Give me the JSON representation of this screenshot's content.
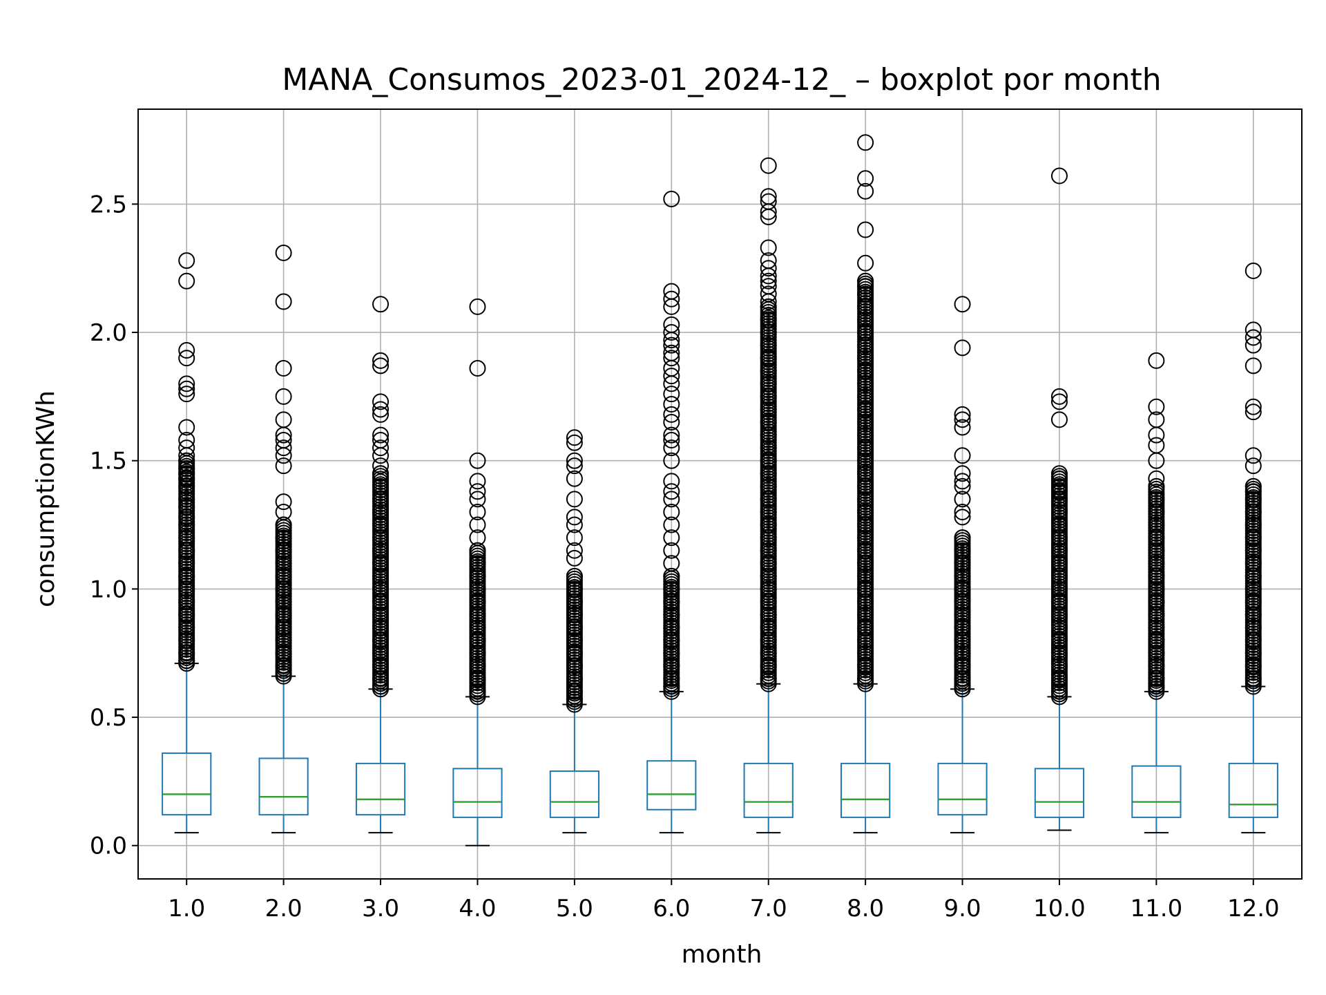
{
  "chart_data": {
    "type": "boxplot",
    "title": "MANA_Consumos_2023-01_2024-12_ – boxplot por month",
    "xlabel": "month",
    "ylabel": "consumptionKWh",
    "categories": [
      "1.0",
      "2.0",
      "3.0",
      "4.0",
      "5.0",
      "6.0",
      "7.0",
      "8.0",
      "9.0",
      "10.0",
      "11.0",
      "12.0"
    ],
    "ylim": [
      -0.13,
      2.87
    ],
    "yticks": [
      0.0,
      0.5,
      1.0,
      1.5,
      2.0,
      2.5
    ],
    "ytick_labels": [
      "0.0",
      "0.5",
      "1.0",
      "1.5",
      "2.0",
      "2.5"
    ],
    "grid": true,
    "colors": {
      "box": "#1f77b4",
      "whisker": "#1f77b4",
      "median": "#2ca02c",
      "cap": "#000000",
      "flier": "#000000",
      "grid": "#b0b0b0"
    },
    "boxes": [
      {
        "month": "1.0",
        "whislo": 0.05,
        "q1": 0.12,
        "med": 0.2,
        "q3": 0.36,
        "whishi": 0.71,
        "outlier_min": 0.71,
        "outlier_dense_to": 1.5,
        "fliers": [
          2.28,
          2.2,
          1.93,
          1.9,
          1.8,
          1.78,
          1.76,
          1.63,
          1.58,
          1.55,
          1.52,
          1.5,
          1.47,
          1.45,
          1.43,
          1.4,
          1.35,
          1.32,
          1.28,
          1.25,
          1.2,
          1.15,
          1.1,
          1.05,
          1.0,
          0.95,
          0.9,
          0.85,
          0.8,
          0.75,
          0.72
        ]
      },
      {
        "month": "2.0",
        "whislo": 0.05,
        "q1": 0.12,
        "med": 0.19,
        "q3": 0.34,
        "whishi": 0.66,
        "outlier_min": 0.66,
        "outlier_dense_to": 1.25,
        "fliers": [
          2.31,
          2.12,
          1.86,
          1.75,
          1.66,
          1.6,
          1.58,
          1.55,
          1.52,
          1.48,
          1.34,
          1.3,
          1.25,
          1.2,
          1.15,
          1.1,
          1.05,
          1.0,
          0.95,
          0.9,
          0.85,
          0.8,
          0.75,
          0.7,
          0.67
        ]
      },
      {
        "month": "3.0",
        "whislo": 0.05,
        "q1": 0.12,
        "med": 0.18,
        "q3": 0.32,
        "whishi": 0.61,
        "outlier_min": 0.61,
        "outlier_dense_to": 1.45,
        "fliers": [
          2.11,
          1.89,
          1.87,
          1.73,
          1.7,
          1.68,
          1.6,
          1.58,
          1.55,
          1.52,
          1.48,
          1.45,
          1.4,
          1.35,
          1.3,
          1.25,
          1.2,
          1.15,
          1.1,
          1.05,
          1.0,
          0.95,
          0.9,
          0.85,
          0.8,
          0.75,
          0.7,
          0.65,
          0.62
        ]
      },
      {
        "month": "4.0",
        "whislo": 0.0,
        "q1": 0.11,
        "med": 0.17,
        "q3": 0.3,
        "whishi": 0.58,
        "outlier_min": 0.58,
        "outlier_dense_to": 1.15,
        "fliers": [
          2.1,
          1.86,
          1.5,
          1.42,
          1.38,
          1.35,
          1.3,
          1.25,
          1.2,
          1.15,
          1.1,
          1.05,
          1.0,
          0.95,
          0.9,
          0.85,
          0.8,
          0.75,
          0.7,
          0.65,
          0.6
        ]
      },
      {
        "month": "5.0",
        "whislo": 0.05,
        "q1": 0.11,
        "med": 0.17,
        "q3": 0.29,
        "whishi": 0.55,
        "outlier_min": 0.55,
        "outlier_dense_to": 1.05,
        "fliers": [
          1.59,
          1.57,
          1.5,
          1.48,
          1.43,
          1.35,
          1.28,
          1.25,
          1.2,
          1.15,
          1.12,
          1.05,
          1.0,
          0.95,
          0.9,
          0.85,
          0.8,
          0.75,
          0.7,
          0.65,
          0.6,
          0.57
        ]
      },
      {
        "month": "6.0",
        "whislo": 0.05,
        "q1": 0.14,
        "med": 0.2,
        "q3": 0.33,
        "whishi": 0.6,
        "outlier_min": 0.6,
        "outlier_dense_to": 1.05,
        "fliers": [
          2.52,
          2.16,
          2.13,
          2.1,
          2.03,
          2.0,
          1.97,
          1.95,
          1.92,
          1.9,
          1.86,
          1.83,
          1.8,
          1.76,
          1.72,
          1.68,
          1.65,
          1.6,
          1.58,
          1.55,
          1.5,
          1.42,
          1.38,
          1.35,
          1.3,
          1.25,
          1.2,
          1.15,
          1.1,
          1.05,
          1.0,
          0.95,
          0.9,
          0.85,
          0.8,
          0.75,
          0.7,
          0.65,
          0.62
        ]
      },
      {
        "month": "7.0",
        "whislo": 0.05,
        "q1": 0.11,
        "med": 0.17,
        "q3": 0.32,
        "whishi": 0.63,
        "outlier_min": 0.63,
        "outlier_dense_to": 2.1,
        "fliers": [
          2.65,
          2.53,
          2.51,
          2.47,
          2.45,
          2.33,
          2.28,
          2.25,
          2.22,
          2.2,
          2.18,
          2.15,
          2.12,
          2.1,
          2.05,
          2.0,
          1.95,
          1.9,
          1.85,
          1.8,
          1.75,
          1.7,
          1.65,
          1.6,
          1.55,
          1.5,
          1.45,
          1.4,
          1.35,
          1.3,
          1.25,
          1.2,
          1.15,
          1.1,
          1.05,
          1.0,
          0.95,
          0.9,
          0.85,
          0.8,
          0.75,
          0.7,
          0.65
        ]
      },
      {
        "month": "8.0",
        "whislo": 0.05,
        "q1": 0.11,
        "med": 0.18,
        "q3": 0.32,
        "whishi": 0.63,
        "outlier_min": 0.63,
        "outlier_dense_to": 2.2,
        "fliers": [
          2.74,
          2.6,
          2.55,
          2.4,
          2.27,
          2.2,
          2.18,
          2.15,
          2.1,
          2.05,
          2.0,
          1.95,
          1.9,
          1.85,
          1.8,
          1.75,
          1.7,
          1.65,
          1.6,
          1.55,
          1.5,
          1.45,
          1.4,
          1.35,
          1.3,
          1.25,
          1.2,
          1.15,
          1.1,
          1.05,
          1.0,
          0.95,
          0.9,
          0.85,
          0.8,
          0.75,
          0.7,
          0.65
        ]
      },
      {
        "month": "9.0",
        "whislo": 0.05,
        "q1": 0.12,
        "med": 0.18,
        "q3": 0.32,
        "whishi": 0.61,
        "outlier_min": 0.61,
        "outlier_dense_to": 1.2,
        "fliers": [
          2.11,
          1.94,
          1.68,
          1.66,
          1.63,
          1.52,
          1.45,
          1.42,
          1.4,
          1.35,
          1.3,
          1.28,
          1.2,
          1.15,
          1.1,
          1.05,
          1.0,
          0.95,
          0.9,
          0.85,
          0.8,
          0.75,
          0.7,
          0.65,
          0.62
        ]
      },
      {
        "month": "10.0",
        "whislo": 0.06,
        "q1": 0.11,
        "med": 0.17,
        "q3": 0.3,
        "whishi": 0.58,
        "outlier_min": 0.58,
        "outlier_dense_to": 1.45,
        "fliers": [
          2.61,
          1.75,
          1.73,
          1.66,
          1.43,
          1.4,
          1.38,
          1.35,
          1.3,
          1.25,
          1.2,
          1.15,
          1.1,
          1.05,
          1.0,
          0.95,
          0.9,
          0.85,
          0.8,
          0.75,
          0.7,
          0.65,
          0.6
        ]
      },
      {
        "month": "11.0",
        "whislo": 0.05,
        "q1": 0.11,
        "med": 0.17,
        "q3": 0.31,
        "whishi": 0.6,
        "outlier_min": 0.6,
        "outlier_dense_to": 1.4,
        "fliers": [
          1.89,
          1.71,
          1.66,
          1.6,
          1.56,
          1.5,
          1.43,
          1.4,
          1.35,
          1.3,
          1.25,
          1.2,
          1.15,
          1.1,
          1.05,
          1.0,
          0.95,
          0.9,
          0.85,
          0.8,
          0.75,
          0.7,
          0.65,
          0.62
        ]
      },
      {
        "month": "12.0",
        "whislo": 0.05,
        "q1": 0.11,
        "med": 0.16,
        "q3": 0.32,
        "whishi": 0.62,
        "outlier_min": 0.62,
        "outlier_dense_to": 1.4,
        "fliers": [
          2.24,
          2.01,
          1.98,
          1.95,
          1.87,
          1.71,
          1.69,
          1.52,
          1.48,
          1.4,
          1.38,
          1.35,
          1.3,
          1.25,
          1.2,
          1.15,
          1.1,
          1.05,
          1.0,
          0.95,
          0.9,
          0.85,
          0.8,
          0.75,
          0.7,
          0.65
        ]
      }
    ]
  }
}
